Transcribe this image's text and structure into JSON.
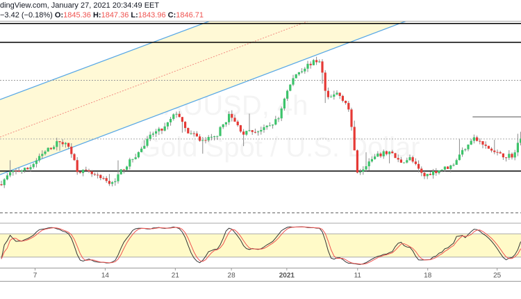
{
  "header": {
    "source_line": "dingView.com, January 27, 2021 20:34:49 EET",
    "change": "−3.42 (−0.18%)",
    "open_label": "O:",
    "open": "1845.36",
    "high_label": "H:",
    "high": "1847.36",
    "low_label": "L:",
    "low": "1843.96",
    "close_label": "C:",
    "close": "1846.71"
  },
  "watermark": {
    "symbol": "XAUUSD, 4h",
    "description": "Gold Spot / U.S. Dollar"
  },
  "colors": {
    "up": "#26a69a",
    "up_fill": "#3cc36a",
    "down": "#e53935",
    "channel": "#5aa9e6",
    "channel_fill": "#fff9d6",
    "stoch_k": "#333333",
    "stoch_d": "#ef5350",
    "band": "#fffac8"
  },
  "chart_data": {
    "type": "candlestick",
    "symbol": "XAUUSD",
    "timeframe": "4h",
    "x_unit": "weeks since Dec 7 2020",
    "x_ticks": [
      {
        "label": "7",
        "t": 0
      },
      {
        "label": "14",
        "t": 1
      },
      {
        "label": "21",
        "t": 2
      },
      {
        "label": "28",
        "t": 2.8
      },
      {
        "label": "2021",
        "t": 3.59,
        "bold": true
      },
      {
        "label": "11",
        "t": 4.6
      },
      {
        "label": "18",
        "t": 5.6
      },
      {
        "label": "25",
        "t": 6.59
      }
    ],
    "x_range": [
      -0.5,
      6.93
    ],
    "y_range": [
      1770,
      1965
    ],
    "price_path": [
      [
        -0.5,
        1796
      ],
      [
        -0.35,
        1808
      ],
      [
        -0.1,
        1812
      ],
      [
        0.15,
        1830
      ],
      [
        0.35,
        1841
      ],
      [
        0.5,
        1834
      ],
      [
        0.6,
        1811
      ],
      [
        0.79,
        1807
      ],
      [
        1.09,
        1796
      ],
      [
        1.24,
        1811
      ],
      [
        1.49,
        1830
      ],
      [
        1.68,
        1849
      ],
      [
        1.83,
        1853
      ],
      [
        2.03,
        1872
      ],
      [
        2.13,
        1853
      ],
      [
        2.38,
        1841
      ],
      [
        2.57,
        1845
      ],
      [
        2.77,
        1868
      ],
      [
        2.97,
        1849
      ],
      [
        3.27,
        1853
      ],
      [
        3.47,
        1864
      ],
      [
        3.56,
        1887
      ],
      [
        3.71,
        1910
      ],
      [
        3.91,
        1921
      ],
      [
        4.06,
        1925
      ],
      [
        4.11,
        1906
      ],
      [
        4.16,
        1883
      ],
      [
        4.31,
        1891
      ],
      [
        4.46,
        1879
      ],
      [
        4.5,
        1860
      ],
      [
        4.6,
        1808
      ],
      [
        4.75,
        1819
      ],
      [
        4.9,
        1826
      ],
      [
        5.05,
        1830
      ],
      [
        5.2,
        1819
      ],
      [
        5.35,
        1823
      ],
      [
        5.54,
        1804
      ],
      [
        5.64,
        1808
      ],
      [
        5.94,
        1815
      ],
      [
        6.09,
        1830
      ],
      [
        6.24,
        1845
      ],
      [
        6.44,
        1834
      ],
      [
        6.63,
        1826
      ],
      [
        6.83,
        1826
      ],
      [
        6.93,
        1846.71
      ]
    ],
    "horizontal_levels": [
      1963,
      1943.4,
      1904,
      1843,
      1809.7
    ],
    "resistance_segment": {
      "from_t": 6.24,
      "price": 1866
    },
    "channel": {
      "upper": [
        [
          -0.5,
          1884
        ],
        [
          3.83,
          2002
        ]
      ],
      "lower": [
        [
          -0.5,
          1806
        ],
        [
          6.58,
          2001
        ]
      ]
    },
    "stochastic": {
      "k_period": 14,
      "smooth": 3,
      "bands": [
        20,
        80
      ],
      "range": [
        0,
        100
      ]
    }
  }
}
